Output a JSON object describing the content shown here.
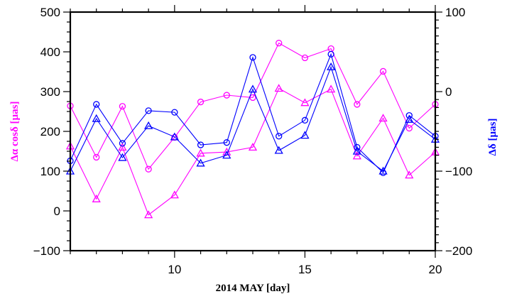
{
  "chart_data": {
    "type": "line",
    "xlabel": "2014 MAY [day]",
    "ylabel_left": "Δα cosδ [µas]",
    "ylabel_right": "Δδ [µas]",
    "xlim": [
      6,
      20
    ],
    "ylim_left": [
      -100,
      500
    ],
    "ylim_right": [
      -200,
      100
    ],
    "x_ticks": [
      "10",
      "15",
      "20"
    ],
    "y_ticks_left": [
      "−100",
      "0",
      "100",
      "200",
      "300",
      "400",
      "500"
    ],
    "y_ticks_right": [
      "−200",
      "−100",
      "0",
      "100"
    ],
    "colors": {
      "left_axis": "#ff00ff",
      "right_axis": "#0000ff"
    },
    "grid": false,
    "series": [
      {
        "axis": "left",
        "color": "#ff00ff",
        "marker": "circle",
        "x": [
          6,
          7,
          8,
          9,
          10,
          11,
          12,
          13,
          14,
          15,
          16,
          17,
          18,
          19,
          20
        ],
        "y": [
          264,
          135,
          263,
          105,
          185,
          274,
          291,
          285,
          422,
          385,
          408,
          268,
          351,
          208,
          268
        ]
      },
      {
        "axis": "left",
        "color": "#ff00ff",
        "marker": "triangle",
        "x": [
          6,
          7,
          8,
          9,
          10,
          11,
          12,
          13,
          14,
          15,
          16,
          17,
          18,
          19,
          20
        ],
        "y": [
          163,
          30,
          160,
          -10,
          40,
          145,
          148,
          160,
          308,
          272,
          306,
          138,
          233,
          90,
          148
        ]
      },
      {
        "axis": "right",
        "color": "#0000ff",
        "marker": "circle",
        "x": [
          6,
          7,
          8,
          9,
          10,
          11,
          12,
          13,
          14,
          15,
          16,
          17,
          18,
          19,
          20
        ],
        "y": [
          -87,
          -16,
          -65,
          -24,
          -26,
          -67,
          -64,
          43,
          -56,
          -36,
          47,
          -70,
          -102,
          -30,
          -56
        ]
      },
      {
        "axis": "right",
        "color": "#0000ff",
        "marker": "triangle",
        "x": [
          6,
          7,
          8,
          9,
          10,
          11,
          12,
          13,
          14,
          15,
          16,
          17,
          18,
          19,
          20
        ],
        "y": [
          -100,
          -34,
          -83,
          -43,
          -57,
          -90,
          -80,
          3,
          -74,
          -55,
          31,
          -75,
          -100,
          -35,
          -60
        ]
      }
    ]
  }
}
